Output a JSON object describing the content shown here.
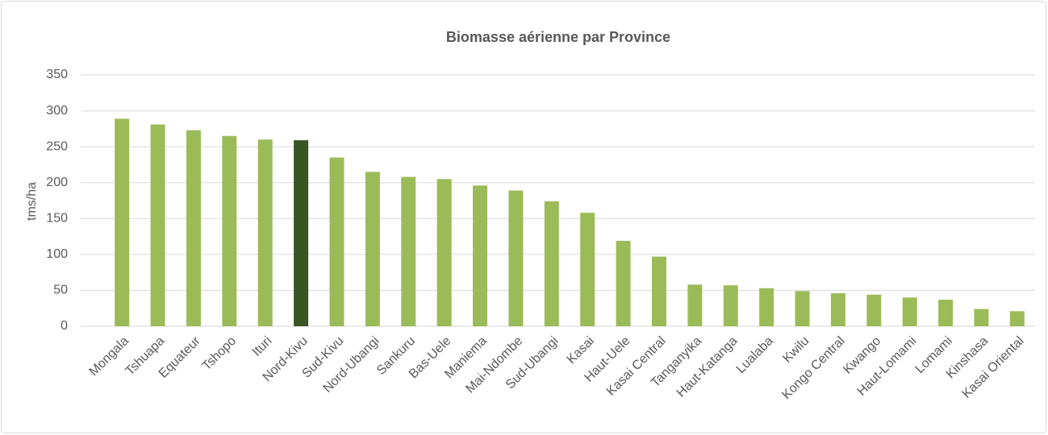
{
  "chart_data": {
    "type": "bar",
    "title": "Biomasse aérienne par Province",
    "y_label": "tms/ha",
    "categories": [
      "Mongala",
      "Tshuapa",
      "Equateur",
      "Tshopo",
      "Ituri",
      "Nord-Kivu",
      "Sud-Kivu",
      "Nord-Ubangi",
      "Sankuru",
      "Bas-Uele",
      "Maniema",
      "Mai-Ndombe",
      "Sud-Ubangi",
      "Kasai",
      "Haut-Uele",
      "Kasai Central",
      "Tanganyika",
      "Haut-Katanga",
      "Lualaba",
      "Kwilu",
      "Kongo Central",
      "Kwango",
      "Haut-Lomami",
      "Lomami",
      "Kinshasa",
      "Kasai Oriental"
    ],
    "values": [
      289,
      281,
      273,
      265,
      260,
      259,
      235,
      215,
      208,
      205,
      196,
      189,
      174,
      158,
      119,
      97,
      58,
      57,
      53,
      49,
      46,
      44,
      40,
      37,
      24,
      21
    ],
    "colors": [
      "#9bbb59",
      "#9bbb59",
      "#9bbb59",
      "#9bbb59",
      "#9bbb59",
      "#375623",
      "#9bbb59",
      "#9bbb59",
      "#9bbb59",
      "#9bbb59",
      "#9bbb59",
      "#9bbb59",
      "#9bbb59",
      "#9bbb59",
      "#9bbb59",
      "#9bbb59",
      "#9bbb59",
      "#9bbb59",
      "#9bbb59",
      "#9bbb59",
      "#9bbb59",
      "#9bbb59",
      "#9bbb59",
      "#9bbb59",
      "#9bbb59",
      "#9bbb59"
    ],
    "ylim": [
      0,
      350
    ],
    "yticks": [
      0,
      50,
      100,
      150,
      200,
      250,
      300,
      350
    ],
    "grid": true
  }
}
